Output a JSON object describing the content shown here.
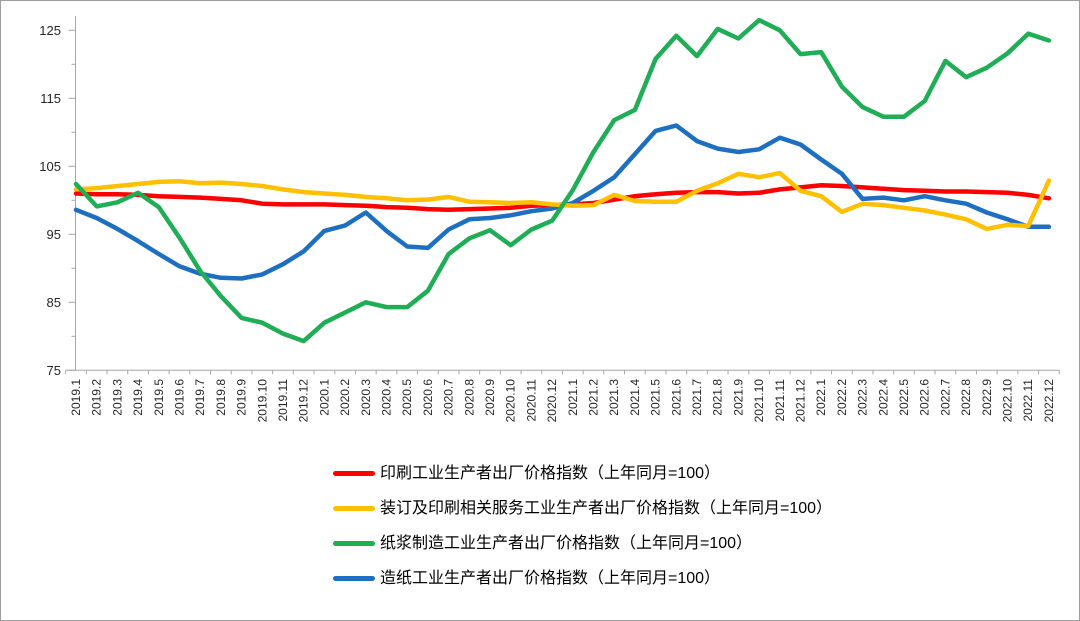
{
  "figure": {
    "background": "#ffffff",
    "border_color": "#9e9e9e"
  },
  "chart_data": {
    "type": "line",
    "title": "",
    "xlabel": "",
    "ylabel": "",
    "grid": false,
    "legend_position": "bottom-left-stacked",
    "y_axis": {
      "range": [
        75,
        127
      ],
      "major_ticks": [
        75,
        85,
        95,
        105,
        115,
        125
      ],
      "minor_ticks": [
        80,
        90,
        100,
        110,
        120
      ]
    },
    "categories": [
      "2019.1",
      "2019.2",
      "2019.3",
      "2019.4",
      "2019.5",
      "2019.6",
      "2019.7",
      "2019.8",
      "2019.9",
      "2019.10",
      "2019.11",
      "2019.12",
      "2020.1",
      "2020.2",
      "2020.3",
      "2020.4",
      "2020.5",
      "2020.6",
      "2020.7",
      "2020.8",
      "2020.9",
      "2020.10",
      "2020.11",
      "2020.12",
      "2021.1",
      "2021.2",
      "2021.3",
      "2021.4",
      "2021.5",
      "2021.6",
      "2021.7",
      "2021.8",
      "2021.9",
      "2021.10",
      "2021.11",
      "2021.12",
      "2022.1",
      "2022.2",
      "2022.3",
      "2022.4",
      "2022.5",
      "2022.6",
      "2022.7",
      "2022.8",
      "2022.9",
      "2022.10",
      "2022.11",
      "2022.12"
    ],
    "series": [
      {
        "key": "printing-ppi",
        "label": "印刷工业生产者出厂价格指数（上年同月=100）",
        "color": "#fe0000",
        "values": [
          101.0,
          100.9,
          100.9,
          100.8,
          100.6,
          100.5,
          100.4,
          100.2,
          100.0,
          99.5,
          99.4,
          99.4,
          99.4,
          99.3,
          99.2,
          99.0,
          98.9,
          98.7,
          98.6,
          98.7,
          98.8,
          98.9,
          99.2,
          99.3,
          99.4,
          99.6,
          100.1,
          100.6,
          100.9,
          101.1,
          101.2,
          101.2,
          101.0,
          101.1,
          101.6,
          101.9,
          102.2,
          102.1,
          101.9,
          101.7,
          101.5,
          101.4,
          101.3,
          101.3,
          101.2,
          101.1,
          100.8,
          100.3
        ]
      },
      {
        "key": "binding-printing-services-ppi",
        "label": "装订及印刷相关服务工业生产者出厂价格指数（上年同月=100）",
        "color": "#ffc000",
        "values": [
          101.6,
          101.8,
          102.1,
          102.4,
          102.7,
          102.8,
          102.5,
          102.6,
          102.4,
          102.1,
          101.6,
          101.2,
          101.0,
          100.8,
          100.5,
          100.3,
          100.0,
          100.1,
          100.5,
          99.8,
          99.7,
          99.6,
          99.7,
          99.4,
          99.2,
          99.3,
          100.8,
          99.9,
          99.8,
          99.8,
          101.4,
          102.5,
          103.9,
          103.4,
          104.0,
          101.4,
          100.6,
          98.3,
          99.5,
          99.3,
          98.9,
          98.5,
          97.9,
          97.2,
          95.8,
          96.4,
          96.2,
          102.9
        ]
      },
      {
        "key": "pulp-manufacturing-ppi",
        "label": "纸浆制造工业生产者出厂价格指数（上年同月=100）",
        "color": "#1fad55",
        "values": [
          102.4,
          99.1,
          99.7,
          101.1,
          99.0,
          94.5,
          89.6,
          85.9,
          82.7,
          82.0,
          80.4,
          79.3,
          82.0,
          83.5,
          85.0,
          84.3,
          84.3,
          86.7,
          92.1,
          94.4,
          95.6,
          93.4,
          95.7,
          97.0,
          101.5,
          107.1,
          111.8,
          113.3,
          120.8,
          124.2,
          121.2,
          125.2,
          123.8,
          126.5,
          125.0,
          121.5,
          121.8,
          116.7,
          113.7,
          112.3,
          112.3,
          114.6,
          120.5,
          118.1,
          119.5,
          121.6,
          124.5,
          123.5
        ]
      },
      {
        "key": "papermaking-ppi",
        "label": "造纸工业生产者出厂价格指数（上年同月=100）",
        "color": "#1e6fbf",
        "values": [
          98.6,
          97.4,
          95.8,
          94.0,
          92.1,
          90.3,
          89.2,
          88.6,
          88.5,
          89.1,
          90.6,
          92.5,
          95.5,
          96.3,
          98.2,
          95.5,
          93.2,
          93.0,
          95.7,
          97.2,
          97.4,
          97.8,
          98.4,
          98.8,
          99.6,
          101.4,
          103.4,
          106.8,
          110.2,
          111.0,
          108.7,
          107.6,
          107.1,
          107.5,
          109.2,
          108.2,
          106.0,
          103.9,
          100.2,
          100.4,
          100.0,
          100.6,
          100.0,
          99.5,
          98.2,
          97.2,
          96.1,
          96.1
        ]
      }
    ]
  }
}
